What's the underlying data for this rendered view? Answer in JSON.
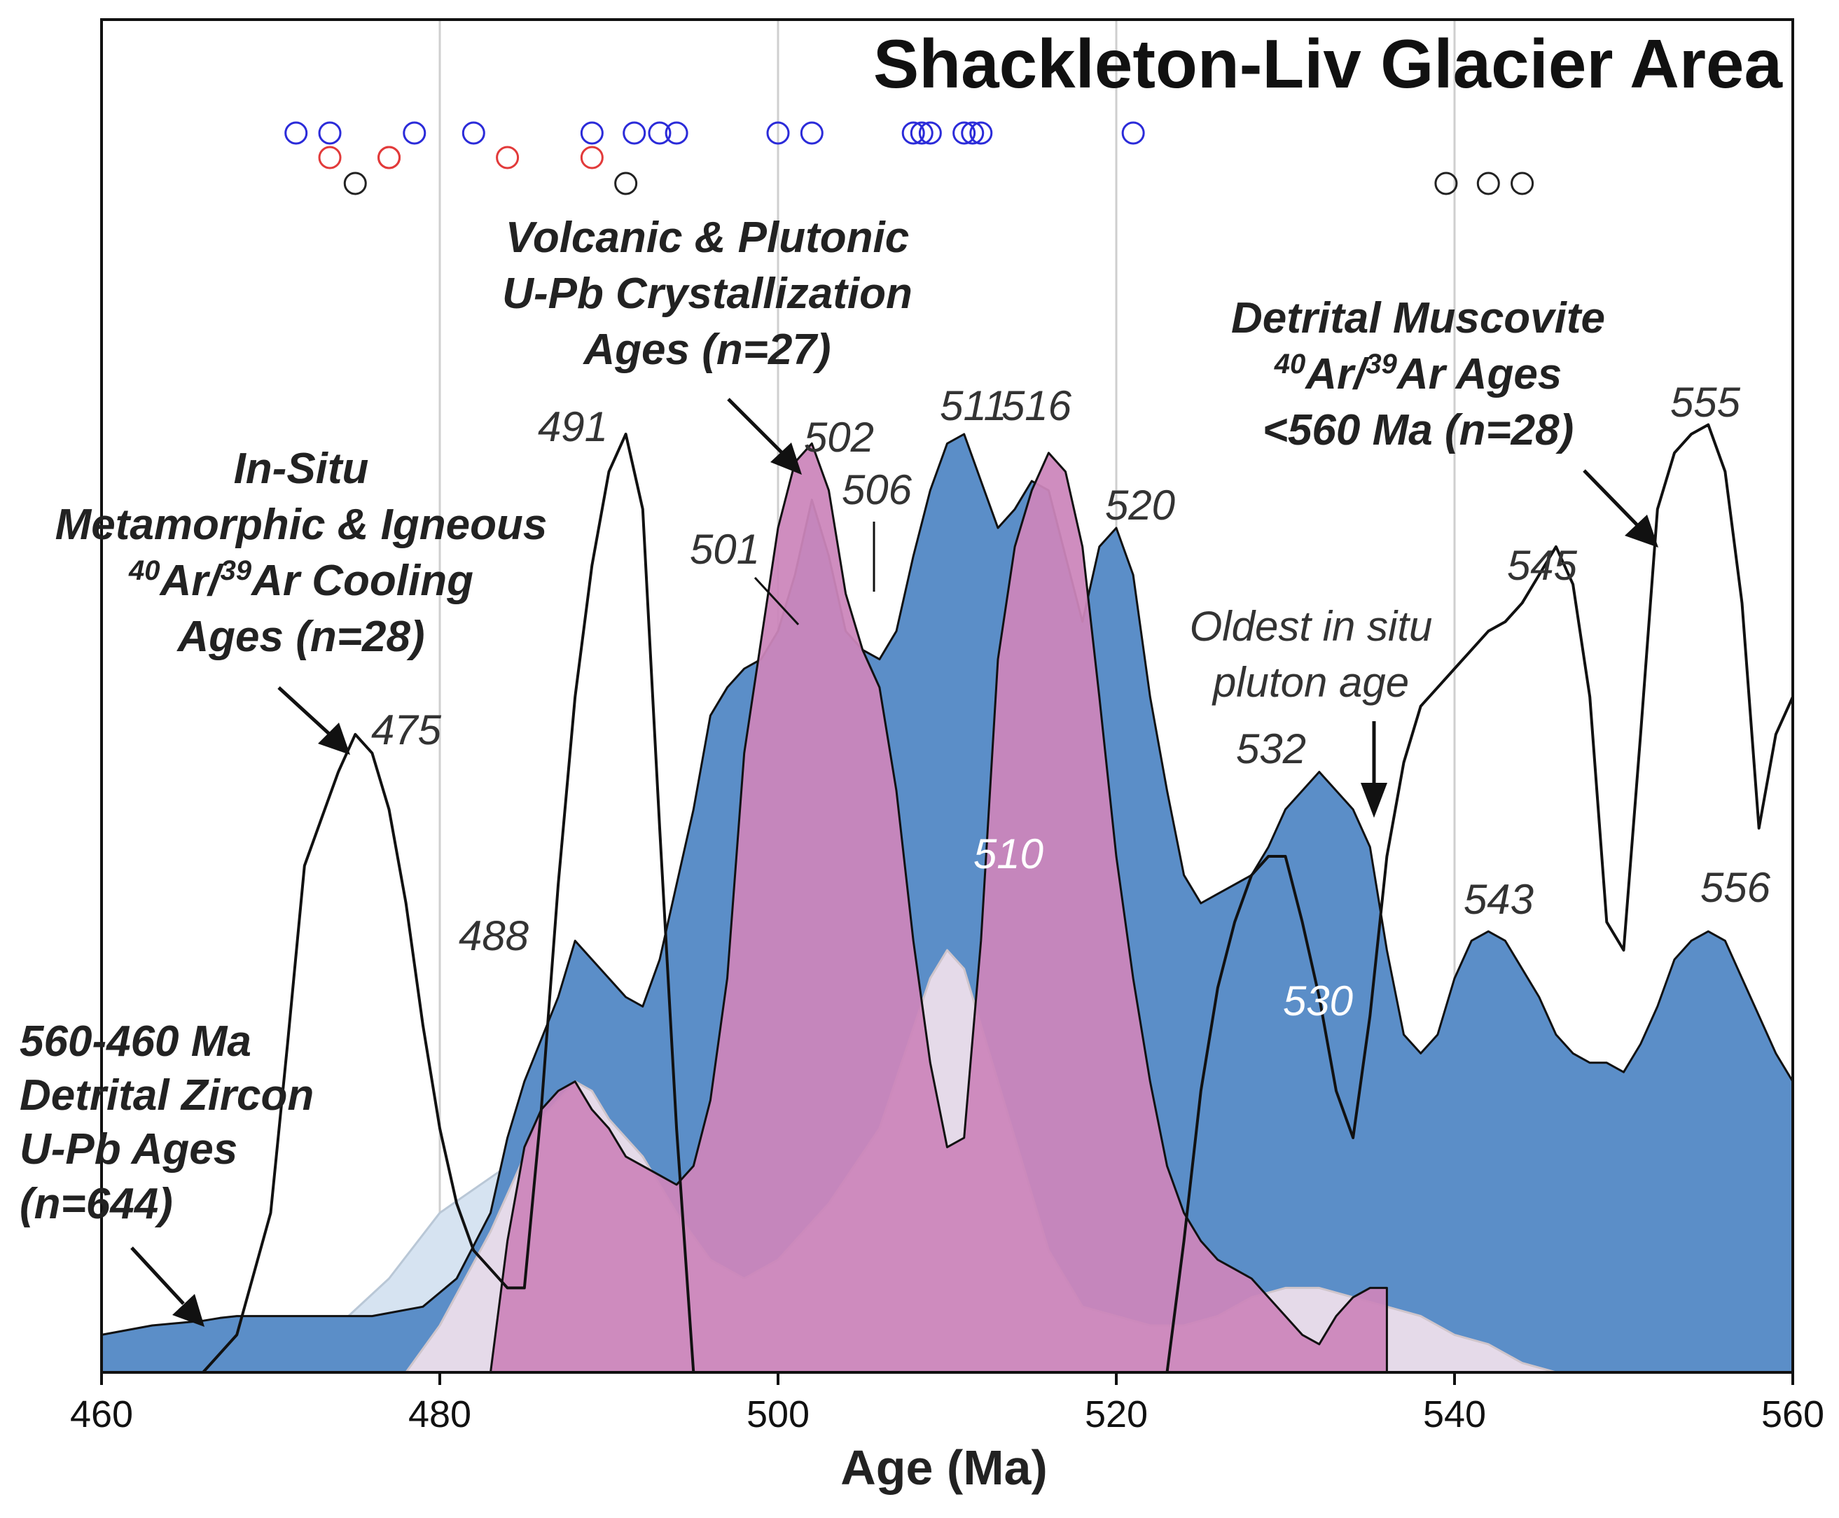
{
  "colors": {
    "zircon": "#5b8ec8",
    "zircon_light": "#d6e3f1",
    "crystallization": "#cc86bb",
    "crystallization_light": "#f0e0ec",
    "crystallization_peak": "#ee98c0",
    "grid": "#cfcfcf",
    "markers_blue": "#2b2bd9",
    "markers_red": "#e23a3a",
    "markers_black": "#222222"
  },
  "chart_data": {
    "type": "area",
    "title": "Shackleton-Liv Glacier Area",
    "xlabel": "Age (Ma)",
    "ylabel": "",
    "xlim": [
      460,
      560
    ],
    "ylim": [
      0,
      1
    ],
    "xticks": [
      460,
      480,
      500,
      520,
      540,
      560
    ],
    "grid": "vertical",
    "series": [
      {
        "name": "Detrital Zircon U-Pb Ages (light, reduced scale)",
        "style": "light-blue-fill",
        "x": [
          466,
          470,
          474,
          477,
          480,
          484,
          488,
          490,
          492,
          494,
          496,
          498,
          499,
          500,
          501
        ],
        "y": [
          0,
          0.02,
          0.05,
          0.1,
          0.17,
          0.22,
          0.26,
          0.24,
          0.22,
          0.26,
          0.32,
          0.38,
          0.42,
          0.45,
          0.47
        ]
      },
      {
        "name": "Detrital Zircon U-Pb Ages (light, peak 542)",
        "style": "light-blue-fill",
        "x": [
          533,
          536,
          539,
          541,
          542,
          543,
          545,
          548,
          550,
          552
        ],
        "y": [
          0,
          0.08,
          0.17,
          0.22,
          0.24,
          0.22,
          0.16,
          0.06,
          0.02,
          0
        ]
      },
      {
        "name": "560-460 Ma Detrital Zircon U-Pb Ages (n=644)",
        "style": "blue-fill",
        "x": [
          460,
          463,
          466,
          467,
          468,
          470,
          473,
          476,
          479,
          481,
          483,
          484,
          485,
          487,
          488,
          489,
          490,
          491,
          492,
          493,
          494,
          495,
          496,
          497,
          498,
          499,
          500,
          501,
          502,
          503,
          504,
          505,
          506,
          507,
          508,
          509,
          510,
          511,
          512,
          513,
          514,
          515,
          516,
          517,
          518,
          519,
          520,
          521,
          522,
          523,
          524,
          525,
          526,
          527,
          528,
          529,
          530,
          531,
          532,
          533,
          534,
          535,
          536,
          537,
          538,
          539,
          540,
          541,
          542,
          543,
          544,
          545,
          546,
          547,
          548,
          549,
          550,
          551,
          552,
          553,
          554,
          555,
          556,
          557,
          558,
          559,
          560
        ],
        "y": [
          0.04,
          0.05,
          0.055,
          0.058,
          0.06,
          0.06,
          0.06,
          0.06,
          0.07,
          0.1,
          0.17,
          0.25,
          0.31,
          0.4,
          0.46,
          0.44,
          0.42,
          0.4,
          0.39,
          0.44,
          0.52,
          0.6,
          0.7,
          0.73,
          0.75,
          0.76,
          0.79,
          0.85,
          0.93,
          0.87,
          0.79,
          0.77,
          0.76,
          0.79,
          0.87,
          0.94,
          0.99,
          1.0,
          0.95,
          0.9,
          0.92,
          0.95,
          0.94,
          0.87,
          0.8,
          0.88,
          0.9,
          0.85,
          0.72,
          0.62,
          0.53,
          0.5,
          0.51,
          0.52,
          0.53,
          0.56,
          0.6,
          0.62,
          0.64,
          0.62,
          0.6,
          0.56,
          0.45,
          0.36,
          0.34,
          0.36,
          0.42,
          0.46,
          0.47,
          0.46,
          0.43,
          0.4,
          0.36,
          0.34,
          0.33,
          0.33,
          0.32,
          0.35,
          0.39,
          0.44,
          0.46,
          0.47,
          0.46,
          0.42,
          0.38,
          0.34,
          0.31
        ]
      },
      {
        "name": "Volcanic & Plutonic U-Pb Crystallization Ages (light, reduced scale)",
        "style": "light-pink-fill",
        "x": [
          478,
          480,
          483,
          486,
          488,
          489,
          490,
          492,
          494,
          496,
          498,
          500,
          503,
          506,
          509,
          510,
          511,
          512,
          514,
          516,
          518,
          520,
          522,
          524,
          526,
          528,
          530,
          532,
          534,
          536,
          538,
          540,
          542,
          544,
          546
        ],
        "y": [
          0,
          0.05,
          0.15,
          0.27,
          0.31,
          0.3,
          0.27,
          0.23,
          0.17,
          0.12,
          0.1,
          0.12,
          0.18,
          0.26,
          0.42,
          0.45,
          0.43,
          0.37,
          0.25,
          0.13,
          0.07,
          0.06,
          0.05,
          0.05,
          0.06,
          0.08,
          0.09,
          0.09,
          0.08,
          0.07,
          0.06,
          0.04,
          0.03,
          0.01,
          0
        ]
      },
      {
        "name": "Volcanic & Plutonic U-Pb Crystallization Ages (n=27)",
        "style": "pink-fill",
        "x": [
          483,
          484,
          485,
          486,
          487,
          488,
          489,
          490,
          491,
          492,
          493,
          494,
          495,
          496,
          497,
          498,
          499,
          500,
          501,
          502,
          503,
          504,
          505,
          506,
          507,
          508,
          509,
          510,
          511,
          512,
          513,
          514,
          515,
          516,
          517,
          518,
          519,
          520,
          521,
          522,
          523,
          524,
          525,
          526,
          527,
          528,
          529,
          530,
          531,
          532,
          533,
          534,
          535,
          536
        ],
        "y": [
          0,
          0.14,
          0.24,
          0.28,
          0.3,
          0.31,
          0.28,
          0.26,
          0.23,
          0.22,
          0.21,
          0.2,
          0.22,
          0.29,
          0.42,
          0.66,
          0.78,
          0.9,
          0.97,
          0.99,
          0.94,
          0.83,
          0.77,
          0.73,
          0.62,
          0.46,
          0.33,
          0.24,
          0.25,
          0.46,
          0.76,
          0.88,
          0.94,
          0.98,
          0.96,
          0.88,
          0.72,
          0.55,
          0.42,
          0.31,
          0.22,
          0.17,
          0.14,
          0.12,
          0.11,
          0.1,
          0.08,
          0.06,
          0.04,
          0.03,
          0.06,
          0.08,
          0.09,
          0.09
        ]
      },
      {
        "name": "In-Situ Metamorphic & Igneous 40Ar/39Ar Cooling Ages (n=28)",
        "style": "black-line",
        "x": [
          466,
          468,
          470,
          471,
          472,
          473,
          474,
          475,
          476,
          477,
          478,
          479,
          480,
          481,
          482,
          483,
          484,
          485,
          486,
          487,
          488,
          489,
          490,
          491,
          492,
          493,
          494,
          495
        ],
        "y": [
          0,
          0.04,
          0.17,
          0.35,
          0.54,
          0.59,
          0.64,
          0.68,
          0.66,
          0.6,
          0.5,
          0.37,
          0.26,
          0.18,
          0.13,
          0.11,
          0.09,
          0.09,
          0.28,
          0.52,
          0.72,
          0.86,
          0.96,
          1.0,
          0.92,
          0.58,
          0.26,
          0
        ]
      },
      {
        "name": "Detrital Muscovite 40Ar/39Ar Ages <560 Ma (n=28)",
        "style": "black-line",
        "x": [
          523,
          524,
          525,
          526,
          527,
          528,
          529,
          530,
          531,
          532,
          533,
          534,
          535,
          536,
          537,
          538,
          539,
          540,
          541,
          542,
          543,
          544,
          545,
          546,
          547,
          548,
          549,
          550,
          551,
          552,
          553,
          554,
          555,
          556,
          557,
          558,
          559,
          560
        ],
        "y": [
          0,
          0.14,
          0.3,
          0.41,
          0.48,
          0.53,
          0.55,
          0.55,
          0.48,
          0.4,
          0.3,
          0.25,
          0.38,
          0.55,
          0.65,
          0.71,
          0.73,
          0.75,
          0.77,
          0.79,
          0.8,
          0.82,
          0.85,
          0.88,
          0.84,
          0.72,
          0.48,
          0.45,
          0.68,
          0.92,
          0.98,
          1.0,
          1.01,
          0.96,
          0.82,
          0.58,
          0.68,
          0.72
        ]
      }
    ],
    "age_markers": {
      "blue": [
        471.5,
        473.5,
        478.5,
        482,
        489,
        491.5,
        493,
        494,
        500,
        502,
        508,
        508.5,
        509,
        511,
        511.5,
        512,
        521
      ],
      "red": [
        473.5,
        477,
        477,
        484,
        489
      ],
      "black": [
        475,
        491,
        539.5,
        542,
        544
      ]
    },
    "peak_labels": [
      {
        "text": "475",
        "x": 475,
        "series": "cooling"
      },
      {
        "text": "488",
        "x": 488,
        "series": "crystallization"
      },
      {
        "text": "491",
        "x": 491,
        "series": "cooling"
      },
      {
        "text": "501",
        "x": 501,
        "series": "zircon"
      },
      {
        "text": "502",
        "x": 502,
        "series": "crystallization"
      },
      {
        "text": "506",
        "x": 506,
        "series": "crystallization"
      },
      {
        "text": "510",
        "x": 510,
        "series": "crystallization-light"
      },
      {
        "text": "511",
        "x": 511,
        "series": "zircon"
      },
      {
        "text": "516",
        "x": 516,
        "series": "crystallization"
      },
      {
        "text": "520",
        "x": 520,
        "series": "zircon"
      },
      {
        "text": "530",
        "x": 530,
        "series": "muscovite"
      },
      {
        "text": "532",
        "x": 532,
        "series": "zircon"
      },
      {
        "text": "543",
        "x": 543,
        "series": "zircon"
      },
      {
        "text": "545",
        "x": 545,
        "series": "muscovite"
      },
      {
        "text": "555",
        "x": 555,
        "series": "muscovite"
      },
      {
        "text": "556",
        "x": 556,
        "series": "zircon"
      }
    ],
    "annotations": {
      "zircon": [
        "560-460 Ma",
        "Detrital Zircon",
        "U-Pb Ages",
        "(n=644)"
      ],
      "cooling": [
        "In-Situ",
        "Metamorphic & Igneous",
        "40Ar/39Ar Cooling",
        "Ages (n=28)"
      ],
      "crystallization": [
        "Volcanic & Plutonic",
        "U-Pb Crystallization",
        "Ages (n=27)"
      ],
      "muscovite": [
        "Detrital Muscovite",
        "40Ar/39Ar Ages",
        "<560 Ma (n=28)"
      ],
      "pluton": [
        "Oldest in situ",
        "pluton age"
      ]
    }
  }
}
